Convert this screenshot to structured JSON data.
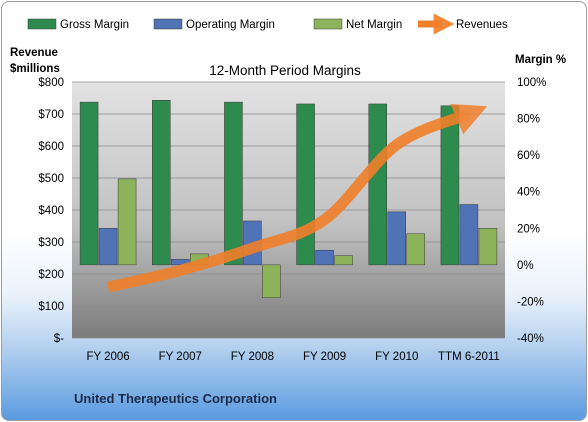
{
  "company": "United Therapeutics Corporation",
  "chart_data": {
    "type": "bar",
    "title": "12-Month Period Margins",
    "y_left_label_line1": "Revenue",
    "y_left_label_line2": "$millions",
    "y_right_label": "Margin %",
    "categories": [
      "FY 2006",
      "FY 2007",
      "FY 2008",
      "FY 2009",
      "FY 2010",
      "TTM 6-2011"
    ],
    "y_left_ticks": [
      "$-",
      "$100",
      "$200",
      "$300",
      "$400",
      "$500",
      "$600",
      "$700",
      "$800"
    ],
    "y_right_ticks": [
      "-40%",
      "-20%",
      "0%",
      "20%",
      "40%",
      "60%",
      "80%",
      "100%"
    ],
    "ylim_left": [
      0,
      800
    ],
    "ylim_right": [
      -40,
      100
    ],
    "legend_position": "top",
    "series": [
      {
        "name": "Gross Margin",
        "kind": "bar",
        "axis": "right",
        "color": "#2e8b4e",
        "values": [
          89,
          90,
          89,
          88,
          88,
          87
        ]
      },
      {
        "name": "Operating Margin",
        "kind": "bar",
        "axis": "right",
        "color": "#4f73b6",
        "values": [
          20,
          3,
          24,
          8,
          29,
          33
        ]
      },
      {
        "name": "Net Margin",
        "kind": "bar",
        "axis": "right",
        "color": "#8db35a",
        "values": [
          47,
          6,
          -18,
          5,
          17,
          20
        ]
      },
      {
        "name": "Revenues",
        "kind": "line",
        "axis": "left",
        "color": "#f07f2a",
        "values": [
          159,
          211,
          281,
          370,
          604,
          700
        ]
      }
    ]
  }
}
